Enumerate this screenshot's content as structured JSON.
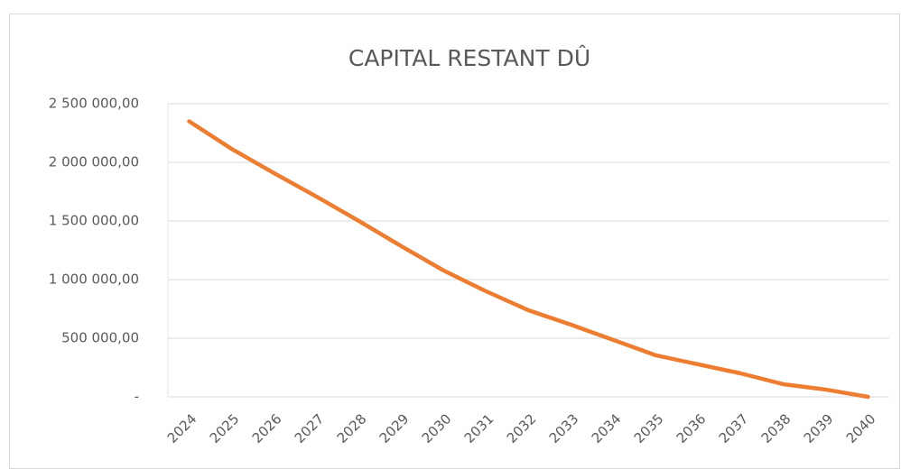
{
  "chart_data": {
    "type": "line",
    "title": "CAPITAL RESTANT DÛ",
    "categories": [
      "2024",
      "2025",
      "2026",
      "2027",
      "2028",
      "2029",
      "2030",
      "2031",
      "2032",
      "2033",
      "2034",
      "2035",
      "2036",
      "2037",
      "2038",
      "2039",
      "2040"
    ],
    "series": [
      {
        "name": "Capital restant dû",
        "color": "#ED7D31",
        "values": [
          2350000,
          2115000,
          1908000,
          1708000,
          1500000,
          1285000,
          1077000,
          900000,
          738000,
          615000,
          485000,
          354000,
          277000,
          200000,
          108000,
          62000,
          0
        ]
      }
    ],
    "ylim": [
      0,
      2500000
    ],
    "yticks": [
      {
        "value": 0,
        "label": "-"
      },
      {
        "value": 500000,
        "label": "500 000,00"
      },
      {
        "value": 1000000,
        "label": "1 000 000,00"
      },
      {
        "value": 1500000,
        "label": "1 500 000,00"
      },
      {
        "value": 2000000,
        "label": "2 000 000,00"
      },
      {
        "value": 2500000,
        "label": "2 500 000,00"
      }
    ],
    "grid": true
  }
}
